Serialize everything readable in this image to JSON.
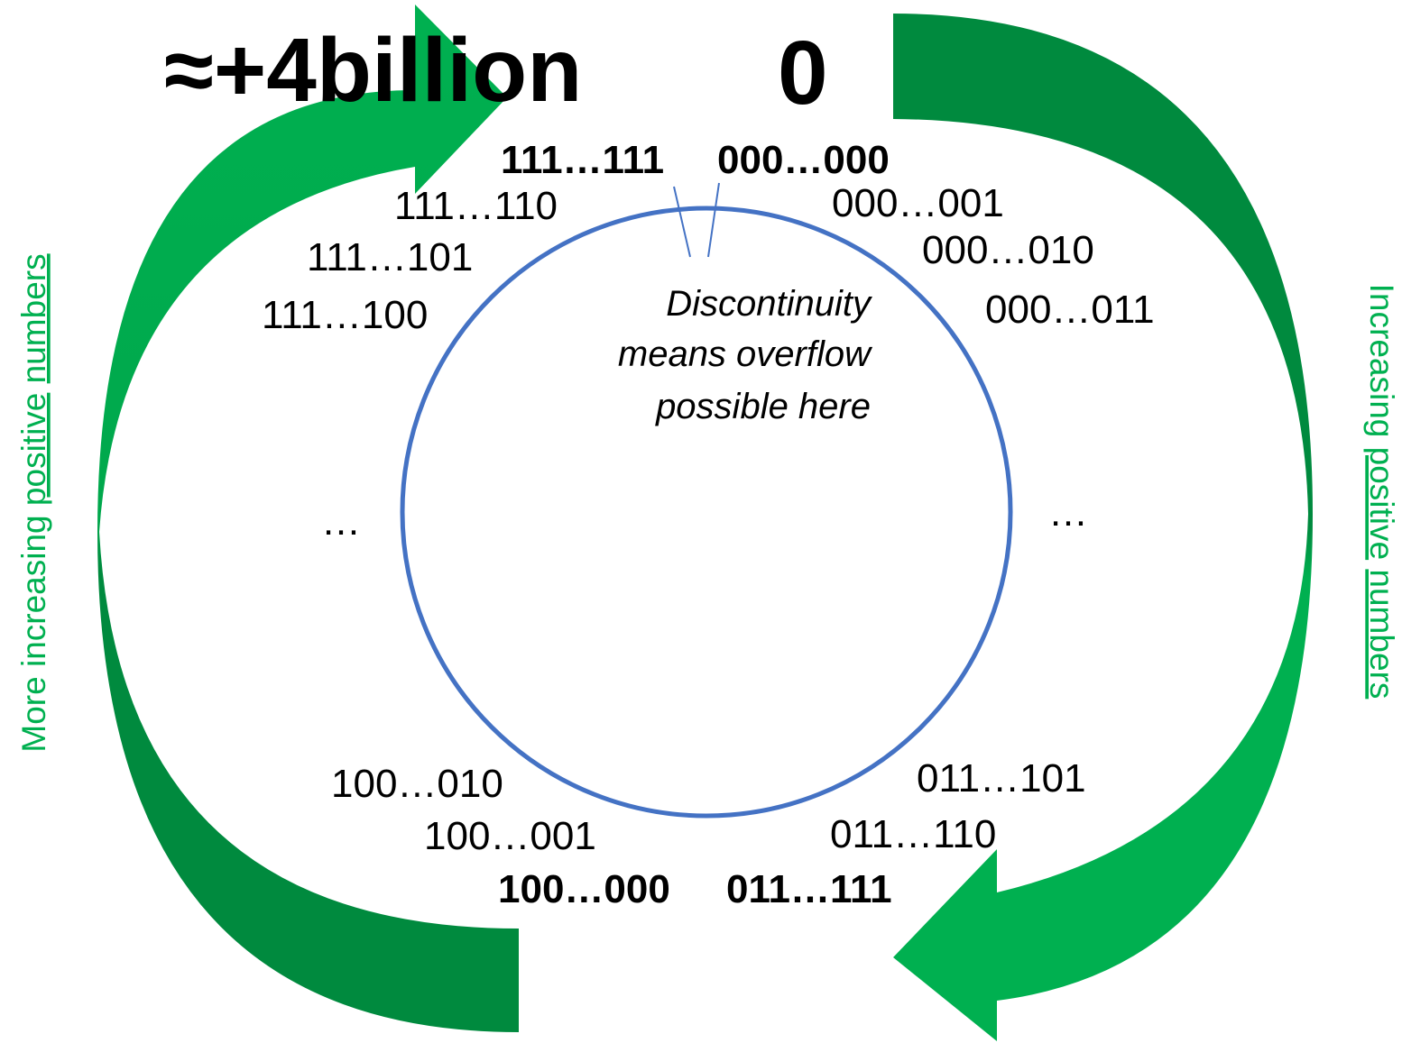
{
  "title": {
    "max": "≈+4billion",
    "zero": "0"
  },
  "ring_labels": {
    "top_left": "111…111",
    "top_right": "000…000",
    "left_1": "111…110",
    "left_2": "111…101",
    "left_3": "111…100",
    "right_1": "000…001",
    "right_2": "000…010",
    "right_3": "000…011",
    "left_middle": "…",
    "right_middle": "…",
    "bottom_left_1": "100…010",
    "bottom_left_2": "100…001",
    "bottom_left_3": "100…000",
    "bottom_right_1": "011…101",
    "bottom_right_2": "011…110",
    "bottom_right_3": "011…111"
  },
  "note": [
    "Discontinuity",
    "means overflow",
    "possible here"
  ],
  "left_side_label": [
    "More",
    "increasing",
    "positive",
    "numbers"
  ],
  "right_side_label": [
    "Increasing",
    "positive",
    "numbers"
  ]
}
